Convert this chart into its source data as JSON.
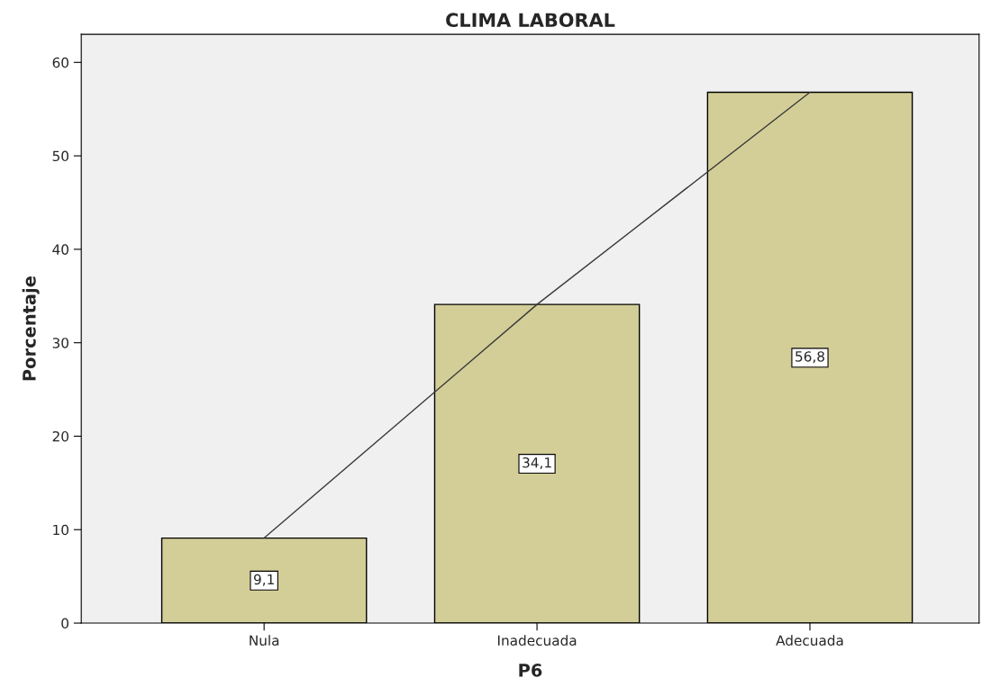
{
  "chart_data": {
    "type": "bar",
    "title": "CLIMA LABORAL",
    "xlabel": "P6",
    "ylabel": "Porcentaje",
    "categories": [
      "Nula",
      "Inadecuada",
      "Adecuada"
    ],
    "series": [
      {
        "color": "#d3ce97",
        "values": [
          9.1,
          34.1,
          56.8
        ],
        "value_labels": [
          "9,1",
          "34,1",
          "56,8"
        ]
      },
      {
        "type": "line",
        "color": "#3a3a3a",
        "values": [
          9.1,
          34.1,
          56.8
        ]
      }
    ],
    "ylim": [
      0,
      63
    ],
    "yticks": [
      0,
      10,
      20,
      30,
      40,
      50,
      60
    ],
    "grid": false,
    "legend": false
  }
}
